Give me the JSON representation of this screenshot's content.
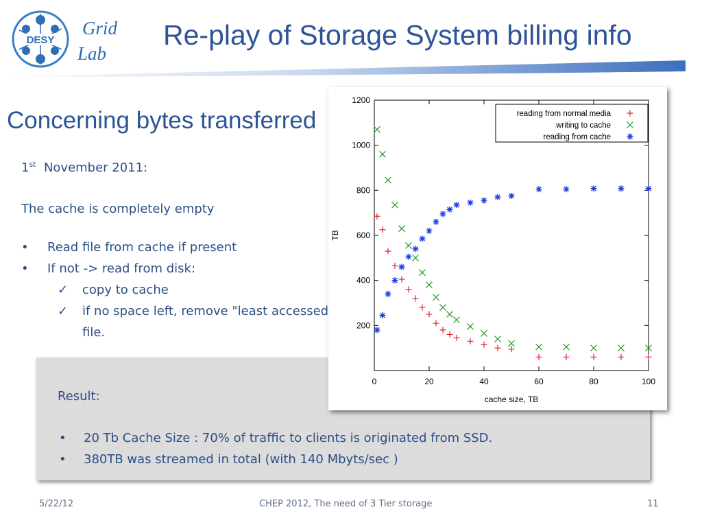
{
  "header": {
    "logo_text": "DESY",
    "grid_word": "Grid",
    "lab_word": "Lab",
    "title": "Re-play of Storage System billing info"
  },
  "subtitle": "Concerning bytes transferred",
  "body": {
    "date_num": "1",
    "date_sup": "st",
    "date_rest": "  November 2011:",
    "cache_empty": "The cache is completely empty",
    "bullet_mark": "•",
    "check_mark": "✓",
    "bullets": [
      "Read file from cache if present",
      "If not ->  read from disk:"
    ],
    "checks": [
      "copy to cache",
      "if no space left, remove \"least accessed\""
    ],
    "check_continuation": "file."
  },
  "result": {
    "label": "Result:",
    "items": [
      "20 Tb Cache Size : 70% of traffic to clients is originated from SSD.",
      "380TB was streamed in total (with 140 Mbyts/sec )"
    ]
  },
  "footer": {
    "date": "5/22/12",
    "center": "CHEP 2012, The need of 3 Tier storage",
    "page": "11"
  },
  "colors": {
    "title": "#2d5497",
    "body_text": "#2c4e86",
    "series_red": "#e0222a",
    "series_green": "#1f9a2e",
    "series_blue": "#1a3bdc"
  },
  "chart_data": {
    "type": "scatter",
    "xlabel": "cache size, TB",
    "ylabel": "TB",
    "xlim": [
      0,
      100
    ],
    "ylim": [
      0,
      1200
    ],
    "xticks": [
      0,
      20,
      40,
      60,
      80,
      100
    ],
    "yticks": [
      200,
      400,
      600,
      800,
      1000,
      1200
    ],
    "legend_position": "top-right",
    "series": [
      {
        "name": "reading from normal media",
        "marker": "plus",
        "color": "#e0222a",
        "x": [
          1,
          3,
          5,
          7.5,
          10,
          12.5,
          15,
          17.5,
          20,
          22.5,
          25,
          27.5,
          30,
          35,
          40,
          45,
          50,
          60,
          70,
          80,
          90,
          100
        ],
        "y": [
          685,
          625,
          530,
          465,
          405,
          360,
          320,
          280,
          250,
          210,
          180,
          160,
          145,
          130,
          115,
          100,
          95,
          60,
          60,
          60,
          60,
          60
        ]
      },
      {
        "name": "writing to cache",
        "marker": "cross",
        "color": "#1f9a2e",
        "x": [
          1,
          3,
          5,
          7.5,
          10,
          12.5,
          15,
          17.5,
          20,
          22.5,
          25,
          27.5,
          30,
          35,
          40,
          45,
          50,
          60,
          70,
          80,
          90,
          100
        ],
        "y": [
          1070,
          960,
          845,
          735,
          630,
          555,
          500,
          435,
          380,
          325,
          280,
          250,
          225,
          195,
          165,
          140,
          120,
          105,
          105,
          100,
          100,
          100
        ]
      },
      {
        "name": "reading from cache",
        "marker": "star",
        "color": "#1a3bdc",
        "x": [
          1,
          3,
          5,
          7.5,
          10,
          12.5,
          15,
          17.5,
          20,
          22.5,
          25,
          27.5,
          30,
          35,
          40,
          45,
          50,
          60,
          70,
          80,
          90,
          100
        ],
        "y": [
          180,
          245,
          340,
          400,
          460,
          505,
          540,
          585,
          620,
          660,
          695,
          715,
          735,
          745,
          755,
          770,
          775,
          805,
          805,
          808,
          808,
          808
        ]
      }
    ]
  }
}
